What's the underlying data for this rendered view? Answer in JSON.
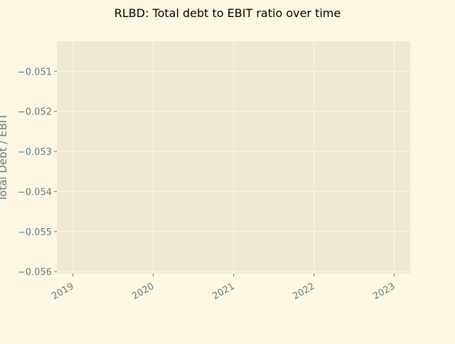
{
  "colors": {
    "figure_bg": "#fdf6e3",
    "axes_bg": "#eee8d5",
    "grid": "#fdf6e3",
    "tick_text": "#657b83",
    "title_text": "#000000"
  },
  "chart_data": {
    "type": "line",
    "title": "RLBD: Total debt to EBIT ratio over time",
    "xlabel": "",
    "ylabel": "Total Debt / EBIT",
    "x_ticks": [
      "2019",
      "2020",
      "2021",
      "2022",
      "2023"
    ],
    "y_ticks": [
      "−0.051",
      "−0.052",
      "−0.053",
      "−0.054",
      "−0.055",
      "−0.056"
    ],
    "y_tick_values": [
      -0.051,
      -0.052,
      -0.053,
      -0.054,
      -0.055,
      -0.056
    ],
    "xlim": [
      "2018-10-20",
      "2023-03-15"
    ],
    "ylim": [
      -0.05605,
      -0.05025
    ],
    "grid": true,
    "series": []
  }
}
